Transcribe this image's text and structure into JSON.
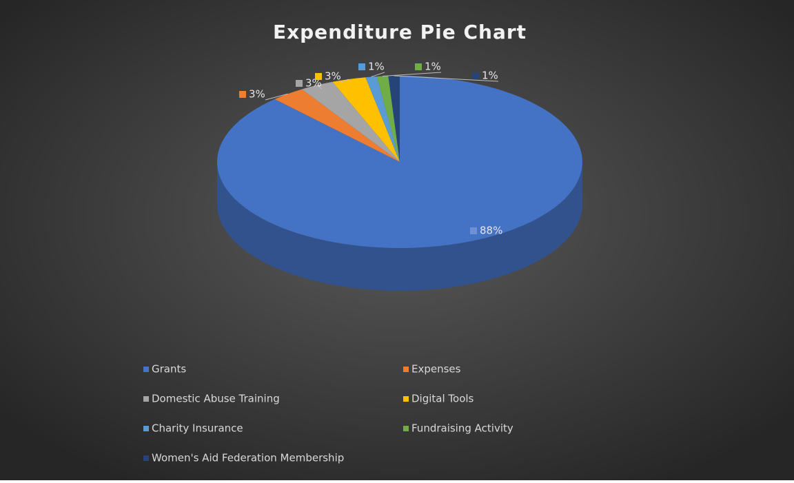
{
  "chart_data": {
    "type": "pie",
    "title": "Expenditure  Pie Chart",
    "categories": [
      "Grants",
      "Expenses",
      "Domestic Abuse Training",
      "Digital Tools",
      "Charity Insurance",
      "Fundraising Activity",
      "Women's Aid Federation Membership"
    ],
    "values": [
      88,
      3,
      3,
      3,
      1,
      1,
      1
    ],
    "value_labels": [
      "88%",
      "3%",
      "3%",
      "3%",
      "1%",
      "1%",
      "1%"
    ],
    "colors": [
      "#4472c4",
      "#ed7d31",
      "#a5a5a5",
      "#ffc000",
      "#5b9bd5",
      "#70ad47",
      "#264478"
    ],
    "legend": "bottom"
  }
}
